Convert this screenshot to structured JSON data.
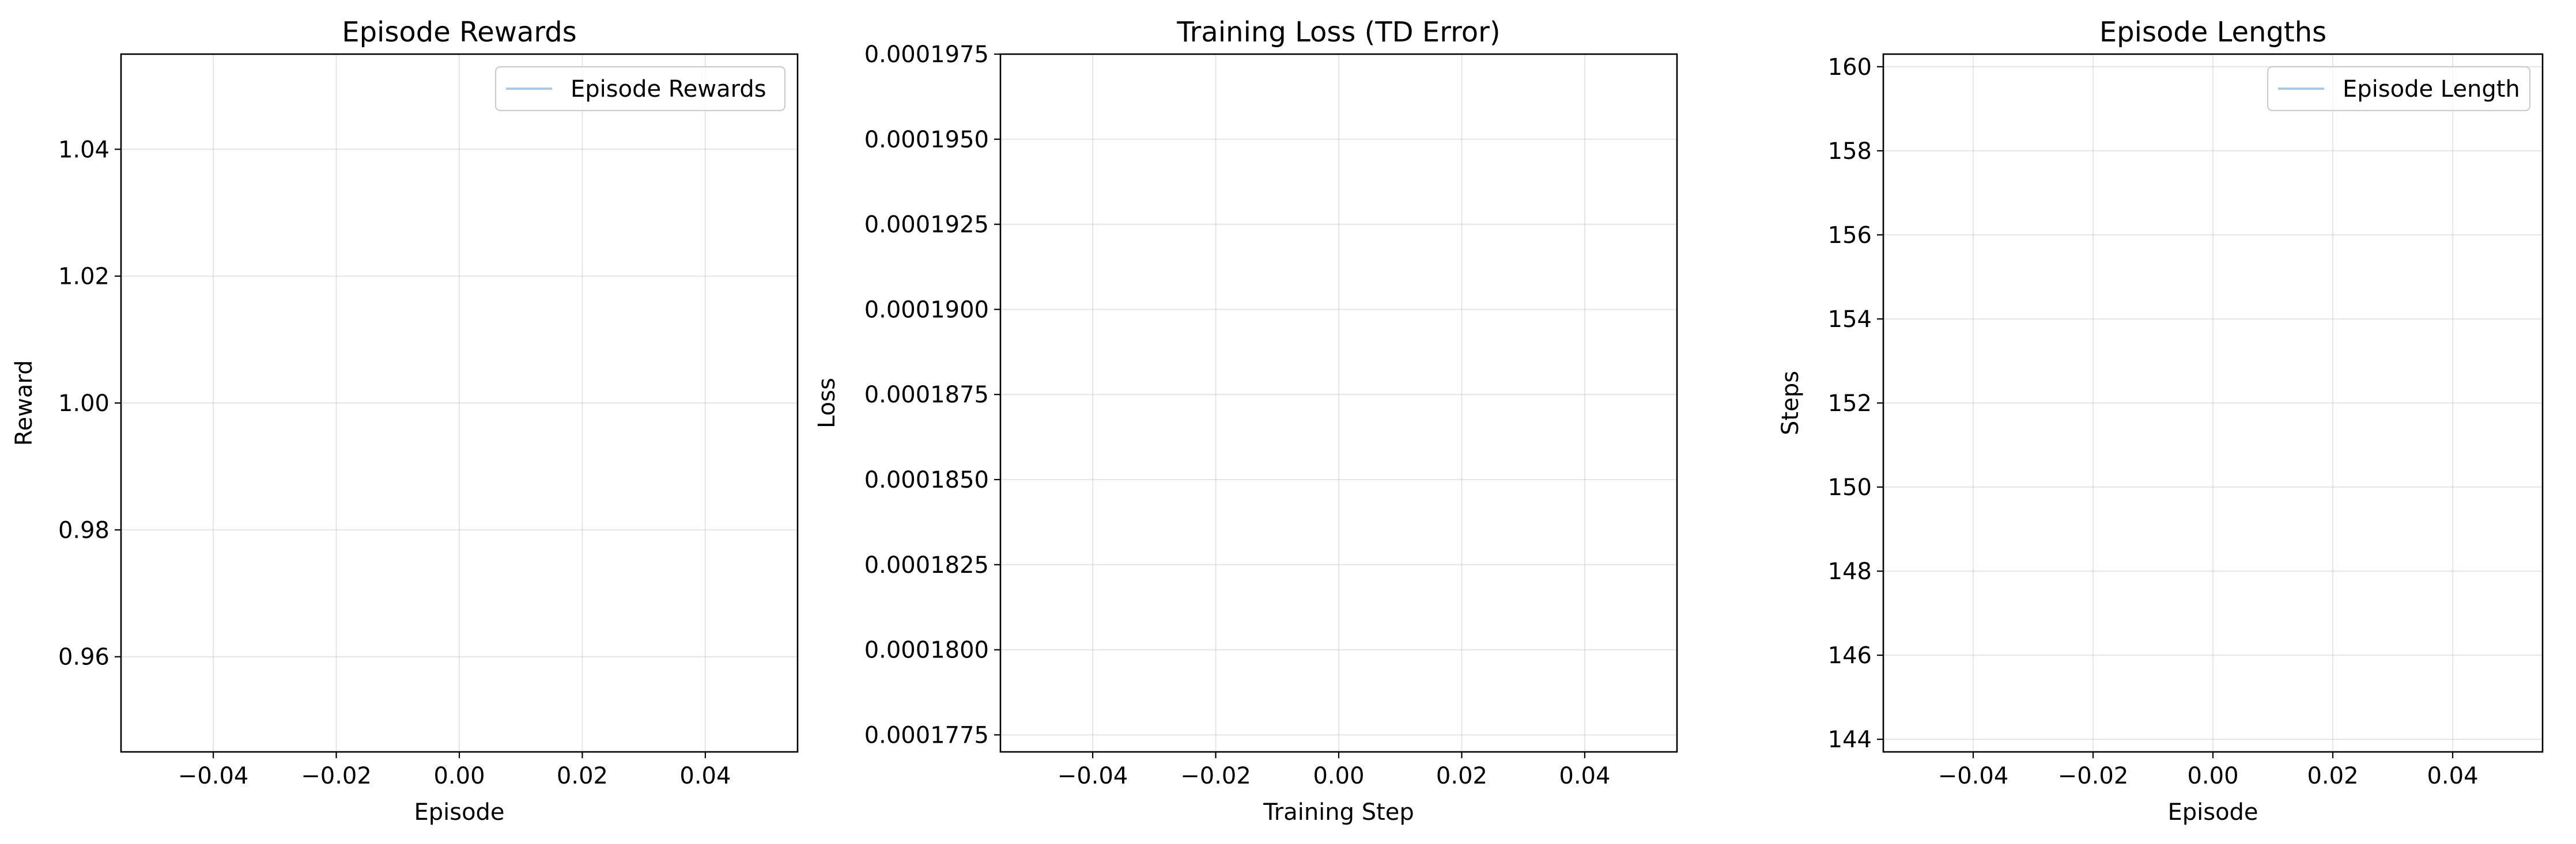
{
  "colors": {
    "series_line": "#a6cbe6",
    "frame": "#000000",
    "grid": "#b0b0b0",
    "background": "#ffffff"
  },
  "chart_data": [
    {
      "type": "line",
      "title": "Episode Rewards",
      "xlabel": "Episode",
      "ylabel": "Reward",
      "xlim": [
        -0.055,
        0.055
      ],
      "ylim": [
        0.945,
        1.055
      ],
      "xticks": [
        -0.04,
        -0.02,
        0.0,
        0.02,
        0.04
      ],
      "xtick_labels": [
        "−0.04",
        "−0.02",
        "0.00",
        "0.02",
        "0.04"
      ],
      "yticks": [
        0.96,
        0.98,
        1.0,
        1.02,
        1.04
      ],
      "ytick_labels": [
        "0.96",
        "0.98",
        "1.00",
        "1.02",
        "1.04"
      ],
      "grid": true,
      "legend_position": "top-right",
      "series": [
        {
          "name": "Episode Rewards",
          "color": "#a6cbe6",
          "x": [],
          "y": []
        }
      ]
    },
    {
      "type": "line",
      "title": "Training Loss (TD Error)",
      "xlabel": "Training Step",
      "ylabel": "Loss",
      "xlim": [
        -0.055,
        0.055
      ],
      "ylim": [
        0.000177,
        0.0001975
      ],
      "xticks": [
        -0.04,
        -0.02,
        0.0,
        0.02,
        0.04
      ],
      "xtick_labels": [
        "−0.04",
        "−0.02",
        "0.00",
        "0.02",
        "0.04"
      ],
      "yticks": [
        0.0001775,
        0.00018,
        0.0001825,
        0.000185,
        0.0001875,
        0.00019,
        0.0001925,
        0.000195,
        0.0001975
      ],
      "ytick_labels": [
        "0.0001775",
        "0.0001800",
        "0.0001825",
        "0.0001850",
        "0.0001875",
        "0.0001900",
        "0.0001925",
        "0.0001950",
        "0.0001975"
      ],
      "grid": true,
      "legend_position": "",
      "series": []
    },
    {
      "type": "line",
      "title": "Episode Lengths",
      "xlabel": "Episode",
      "ylabel": "Steps",
      "xlim": [
        -0.055,
        0.055
      ],
      "ylim": [
        143.7,
        160.3
      ],
      "xticks": [
        -0.04,
        -0.02,
        0.0,
        0.02,
        0.04
      ],
      "xtick_labels": [
        "−0.04",
        "−0.02",
        "0.00",
        "0.02",
        "0.04"
      ],
      "yticks": [
        144,
        146,
        148,
        150,
        152,
        154,
        156,
        158,
        160
      ],
      "ytick_labels": [
        "144",
        "146",
        "148",
        "150",
        "152",
        "154",
        "156",
        "158",
        "160"
      ],
      "grid": true,
      "legend_position": "top-right",
      "series": [
        {
          "name": "Episode Length",
          "color": "#a6cbe6",
          "x": [],
          "y": []
        }
      ]
    }
  ]
}
